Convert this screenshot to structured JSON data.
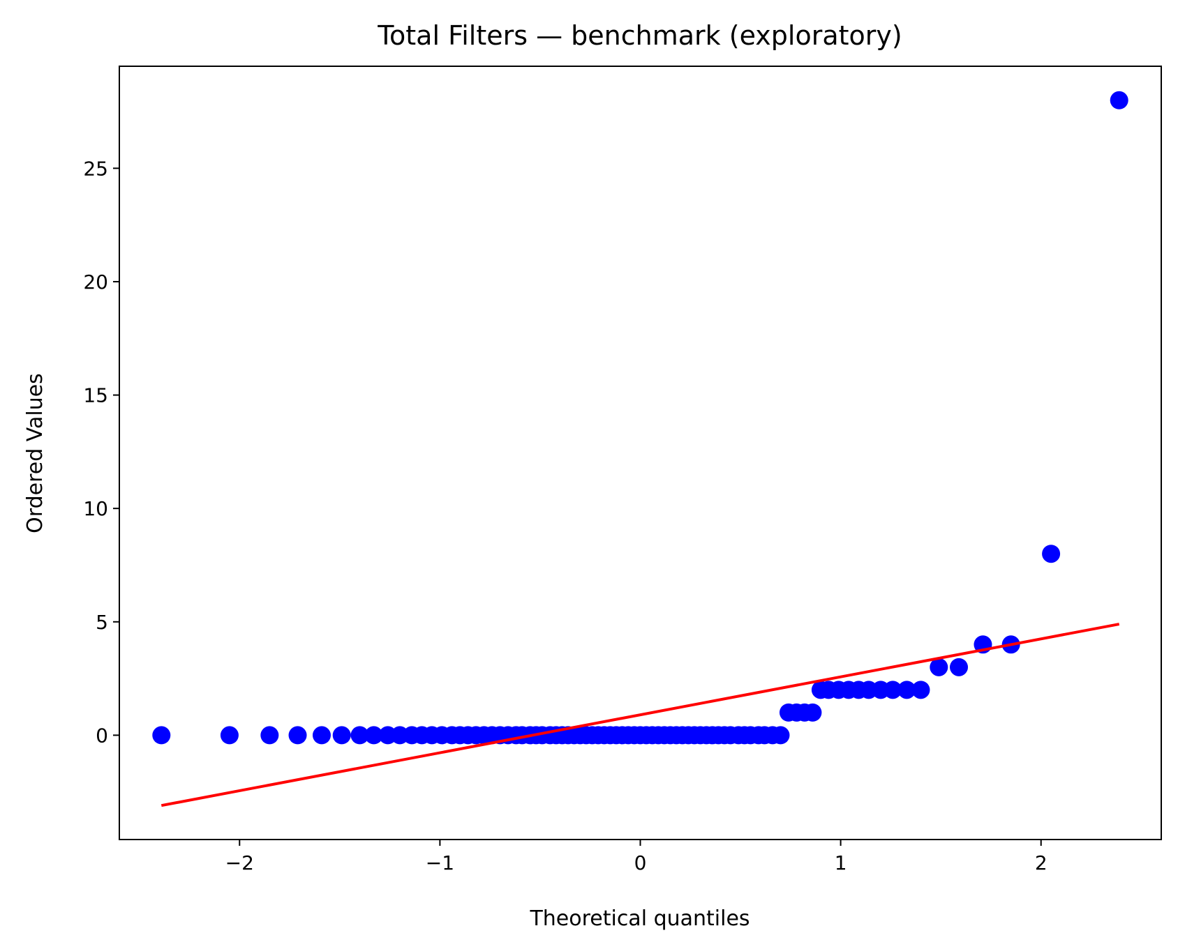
{
  "chart_data": {
    "type": "scatter",
    "title": "Total Filters — benchmark (exploratory)",
    "xlabel": "Theoretical quantiles",
    "ylabel": "Ordered Values",
    "xlim": [
      -2.6,
      2.6
    ],
    "ylim": [
      -4.6,
      29.5
    ],
    "xticks": [
      -2,
      -1,
      0,
      1,
      2
    ],
    "xtick_labels": [
      "−2",
      "−1",
      "0",
      "1",
      "2"
    ],
    "yticks": [
      0,
      5,
      10,
      15,
      20,
      25
    ],
    "ytick_labels": [
      "0",
      "5",
      "10",
      "15",
      "20",
      "25"
    ],
    "grid": false,
    "point_color": "#0000ff",
    "line_color": "#ff0000",
    "points": {
      "x": [
        -2.39,
        -2.05,
        -1.85,
        -1.71,
        -1.59,
        -1.49,
        -1.4,
        -1.33,
        -1.26,
        -1.2,
        -1.14,
        -1.09,
        -1.04,
        -0.99,
        -0.94,
        -0.9,
        -0.86,
        -0.82,
        -0.78,
        -0.74,
        -0.7,
        -0.66,
        -0.62,
        -0.59,
        -0.55,
        -0.52,
        -0.49,
        -0.45,
        -0.42,
        -0.39,
        -0.36,
        -0.33,
        -0.3,
        -0.27,
        -0.24,
        -0.21,
        -0.18,
        -0.15,
        -0.12,
        -0.09,
        -0.06,
        -0.03,
        0.0,
        0.03,
        0.06,
        0.09,
        0.12,
        0.15,
        0.18,
        0.21,
        0.24,
        0.27,
        0.3,
        0.33,
        0.36,
        0.39,
        0.42,
        0.45,
        0.49,
        0.52,
        0.55,
        0.59,
        0.62,
        0.66,
        0.7,
        0.74,
        0.78,
        0.82,
        0.86,
        0.9,
        0.94,
        0.99,
        1.04,
        1.09,
        1.14,
        1.2,
        1.26,
        1.33,
        1.4,
        1.49,
        1.59,
        1.71,
        1.85,
        2.05,
        2.39
      ],
      "y": [
        0,
        0,
        0,
        0,
        0,
        0,
        0,
        0,
        0,
        0,
        0,
        0,
        0,
        0,
        0,
        0,
        0,
        0,
        0,
        0,
        0,
        0,
        0,
        0,
        0,
        0,
        0,
        0,
        0,
        0,
        0,
        0,
        0,
        0,
        0,
        0,
        0,
        0,
        0,
        0,
        0,
        0,
        0,
        0,
        0,
        0,
        0,
        0,
        0,
        0,
        0,
        0,
        0,
        0,
        0,
        0,
        0,
        0,
        0,
        0,
        0,
        0,
        0,
        0,
        0,
        1,
        1,
        1,
        1,
        2,
        2,
        2,
        2,
        2,
        2,
        2,
        2,
        2,
        2,
        3,
        3,
        4,
        4,
        8,
        28
      ]
    },
    "fit_line": {
      "x": [
        -2.39,
        2.39
      ],
      "y": [
        -3.1,
        4.9
      ]
    }
  }
}
